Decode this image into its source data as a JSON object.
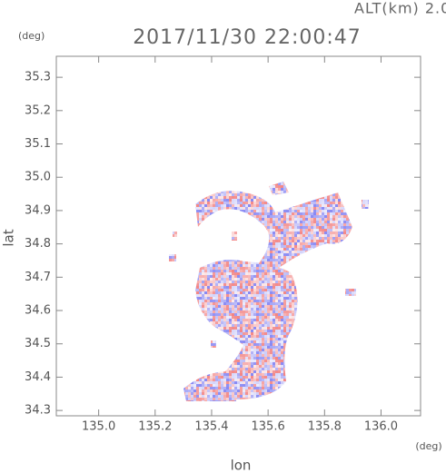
{
  "chart_data": {
    "type": "radar-field",
    "title": "2017/11/30 22:00:47",
    "subtitle": "ALT(km) 2.0",
    "x_label": "lon",
    "x_unit": "(deg)",
    "y_label": "lat",
    "y_unit": "(deg)",
    "xlim": [
      134.85,
      136.14
    ],
    "xticks": [
      {
        "value": 135.0,
        "label": "135.0"
      },
      135.2,
      135.4,
      135.6,
      135.8,
      {
        "value": 136.0,
        "label": "136.0"
      }
    ],
    "ylim": [
      34.284,
      35.363
    ],
    "yticks": [
      34.3,
      34.4,
      34.5,
      34.6,
      34.7,
      34.8,
      34.9,
      {
        "value": 35.0,
        "label": "35.0"
      },
      35.1,
      35.2,
      35.3
    ],
    "colors": [
      "#6f6ff0",
      "#f07070"
    ]
  }
}
